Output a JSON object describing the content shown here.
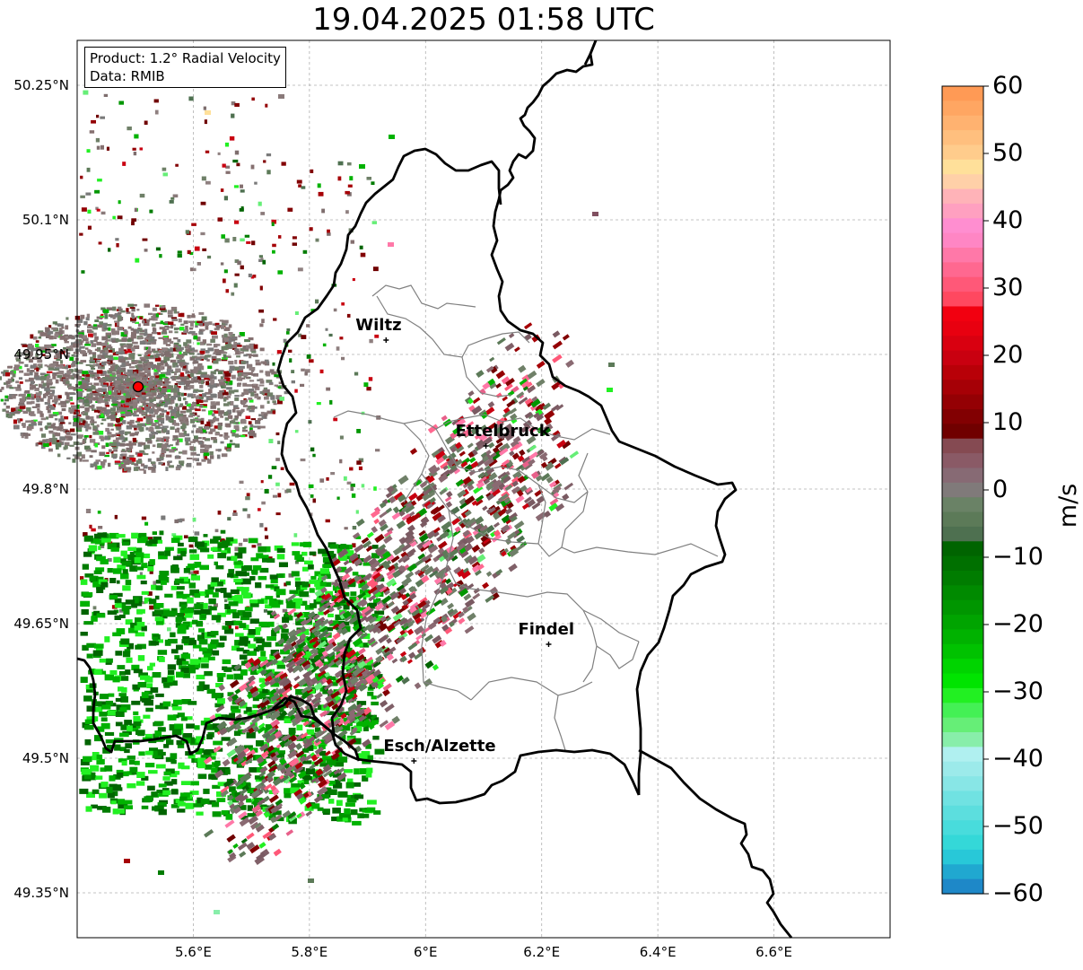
{
  "title": "19.04.2025 01:58 UTC",
  "info": {
    "product": "Product: 1.2° Radial Velocity",
    "source": "Data: RMIB"
  },
  "map": {
    "lon_range": [
      5.4,
      6.8
    ],
    "lat_range": [
      49.3,
      50.3
    ],
    "lat_ticks": [
      {
        "value": 50.25,
        "label": "50.25°N"
      },
      {
        "value": 50.1,
        "label": "50.1°N"
      },
      {
        "value": 49.95,
        "label": "49.95°N"
      },
      {
        "value": 49.8,
        "label": "49.8°N"
      },
      {
        "value": 49.65,
        "label": "49.65°N"
      },
      {
        "value": 49.5,
        "label": "49.5°N"
      },
      {
        "value": 49.35,
        "label": "49.35°N"
      }
    ],
    "lon_ticks": [
      {
        "value": 5.6,
        "label": "5.6°E"
      },
      {
        "value": 5.8,
        "label": "5.8°E"
      },
      {
        "value": 6.0,
        "label": "6°E"
      },
      {
        "value": 6.2,
        "label": "6.2°E"
      },
      {
        "value": 6.4,
        "label": "6.4°E"
      },
      {
        "value": 6.6,
        "label": "6.6°E"
      }
    ],
    "radar_site": {
      "lon": 5.505,
      "lat": 49.914
    },
    "cities": [
      {
        "name": "Wiltz",
        "lon": 5.932,
        "lat": 49.966
      },
      {
        "name": "Ettelbruck",
        "lon": 6.104,
        "lat": 49.848
      },
      {
        "name": "Findel",
        "lon": 6.212,
        "lat": 49.627
      },
      {
        "name": "Esch/Alzette",
        "lon": 5.98,
        "lat": 49.497
      }
    ]
  },
  "colorbar": {
    "label": "m/s",
    "min": -60,
    "max": 60,
    "ticks": [
      {
        "value": 60,
        "label": "60"
      },
      {
        "value": 50,
        "label": "50"
      },
      {
        "value": 40,
        "label": "40"
      },
      {
        "value": 30,
        "label": "30"
      },
      {
        "value": 20,
        "label": "20"
      },
      {
        "value": 10,
        "label": "10"
      },
      {
        "value": 0,
        "label": "0"
      },
      {
        "value": -10,
        "label": "−10"
      },
      {
        "value": -20,
        "label": "−20"
      },
      {
        "value": -30,
        "label": "−30"
      },
      {
        "value": -40,
        "label": "−40"
      },
      {
        "value": -50,
        "label": "−50"
      },
      {
        "value": -60,
        "label": "−60"
      }
    ],
    "colors": [
      "#ff9a55",
      "#ffa662",
      "#ffb270",
      "#ffbf7e",
      "#ffcc8c",
      "#ffe09a",
      "#ffd0a8",
      "#ffb3b8",
      "#ffa0c0",
      "#ff8ed0",
      "#ff86c4",
      "#ff78a8",
      "#ff6890",
      "#ff5878",
      "#ff4860",
      "#f20010",
      "#e80010",
      "#d90010",
      "#c90010",
      "#b80008",
      "#a60006",
      "#940004",
      "#820002",
      "#700000",
      "#854a52",
      "#8a5a66",
      "#876a74",
      "#807a7a",
      "#6a8266",
      "#5c7a58",
      "#4e7050",
      "#006400",
      "#007000",
      "#007c00",
      "#008a00",
      "#009600",
      "#00a400",
      "#00b200",
      "#00c200",
      "#00d400",
      "#00e400",
      "#22f022",
      "#44f055",
      "#66ee77",
      "#88eeaa",
      "#b0f0f0",
      "#9ceaea",
      "#88e6e6",
      "#70e2e2",
      "#5cdede",
      "#48dcdc",
      "#34d8d8",
      "#28c8d8",
      "#20a8d0",
      "#1e88c8"
    ]
  }
}
